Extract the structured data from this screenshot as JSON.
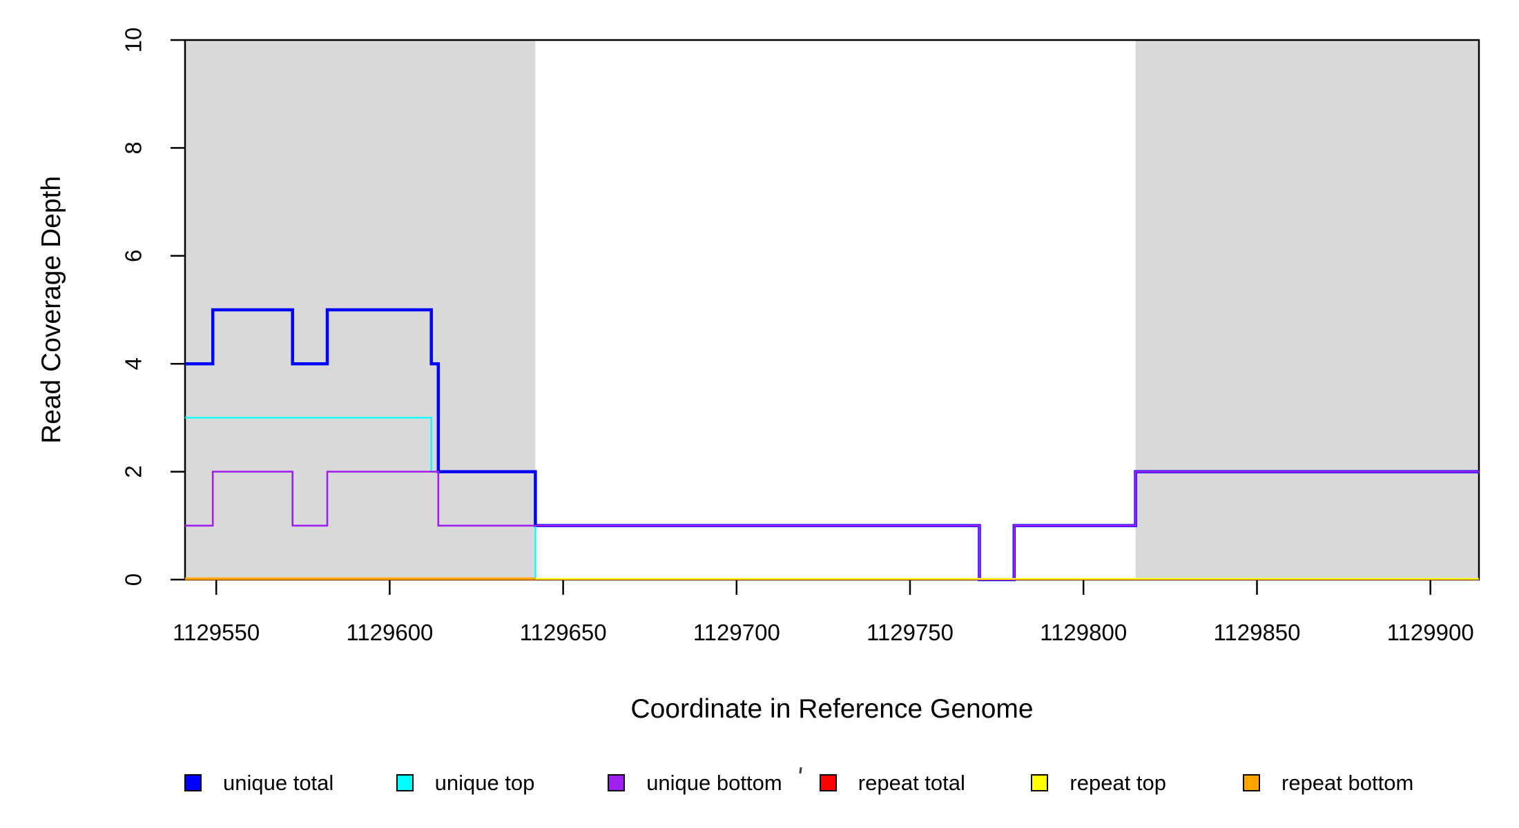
{
  "axes": {
    "x": {
      "label": "Coordinate in Reference Genome",
      "ticks": [
        1129550,
        1129600,
        1129650,
        1129700,
        1129750,
        1129800,
        1129850,
        1129900
      ],
      "range": [
        1129541,
        1129914
      ]
    },
    "y": {
      "label": "Read Coverage Depth",
      "ticks": [
        0,
        2,
        4,
        6,
        8,
        10
      ],
      "range": [
        0,
        10
      ]
    }
  },
  "legend": {
    "items": [
      {
        "label": "unique total",
        "color": "#0000FF"
      },
      {
        "label": "unique top",
        "color": "#00FFFF"
      },
      {
        "label": "unique bottom",
        "color": "#A020F0"
      },
      {
        "label": "repeat total",
        "color": "#FF0000"
      },
      {
        "label": "repeat top",
        "color": "#FFFF00"
      },
      {
        "label": "repeat bottom",
        "color": "#FFA500"
      }
    ]
  },
  "chart_data": {
    "type": "line",
    "subtype": "step-coverage",
    "title": "",
    "xlabel": "Coordinate in Reference Genome",
    "ylabel": "Read Coverage Depth",
    "xlim": [
      1129541,
      1129914
    ],
    "ylim": [
      0,
      10
    ],
    "x_ticks": [
      1129550,
      1129600,
      1129650,
      1129700,
      1129750,
      1129800,
      1129850,
      1129900
    ],
    "y_ticks": [
      0,
      2,
      4,
      6,
      8,
      10
    ],
    "grid": false,
    "legend_position": "bottom",
    "shaded_regions": [
      {
        "name": "repeat-region-left",
        "x0": 1129541,
        "x1": 1129642,
        "color": "#D9D9D9"
      },
      {
        "name": "repeat-region-right",
        "x0": 1129815,
        "x1": 1129914,
        "color": "#D9D9D9"
      }
    ],
    "series": [
      {
        "name": "unique total",
        "color": "#0000FF",
        "steps": [
          [
            1129541,
            4
          ],
          [
            1129549,
            5
          ],
          [
            1129572,
            4
          ],
          [
            1129582,
            5
          ],
          [
            1129612,
            4
          ],
          [
            1129614,
            2
          ],
          [
            1129642,
            1
          ],
          [
            1129770,
            0
          ],
          [
            1129780,
            1
          ],
          [
            1129815,
            2
          ]
        ],
        "end_x": 1129914
      },
      {
        "name": "unique top",
        "color": "#00FFFF",
        "steps": [
          [
            1129541,
            3
          ],
          [
            1129612,
            2
          ],
          [
            1129614,
            1
          ],
          [
            1129642,
            0
          ]
        ],
        "end_x": 1129914
      },
      {
        "name": "unique bottom",
        "color": "#A020F0",
        "steps": [
          [
            1129541,
            1
          ],
          [
            1129549,
            2
          ],
          [
            1129572,
            1
          ],
          [
            1129582,
            2
          ],
          [
            1129614,
            1
          ],
          [
            1129770,
            0
          ],
          [
            1129780,
            1
          ],
          [
            1129815,
            2
          ]
        ],
        "end_x": 1129914
      },
      {
        "name": "repeat total",
        "color": "#FF0000",
        "steps": [
          [
            1129541,
            0
          ]
        ],
        "end_x": 1129914
      },
      {
        "name": "repeat top",
        "color": "#FFFF00",
        "steps": [
          [
            1129541,
            0
          ]
        ],
        "end_x": 1129914
      },
      {
        "name": "repeat bottom",
        "color": "#FFA500",
        "steps": [
          [
            1129541,
            0
          ]
        ],
        "end_x": 1129642
      }
    ]
  }
}
